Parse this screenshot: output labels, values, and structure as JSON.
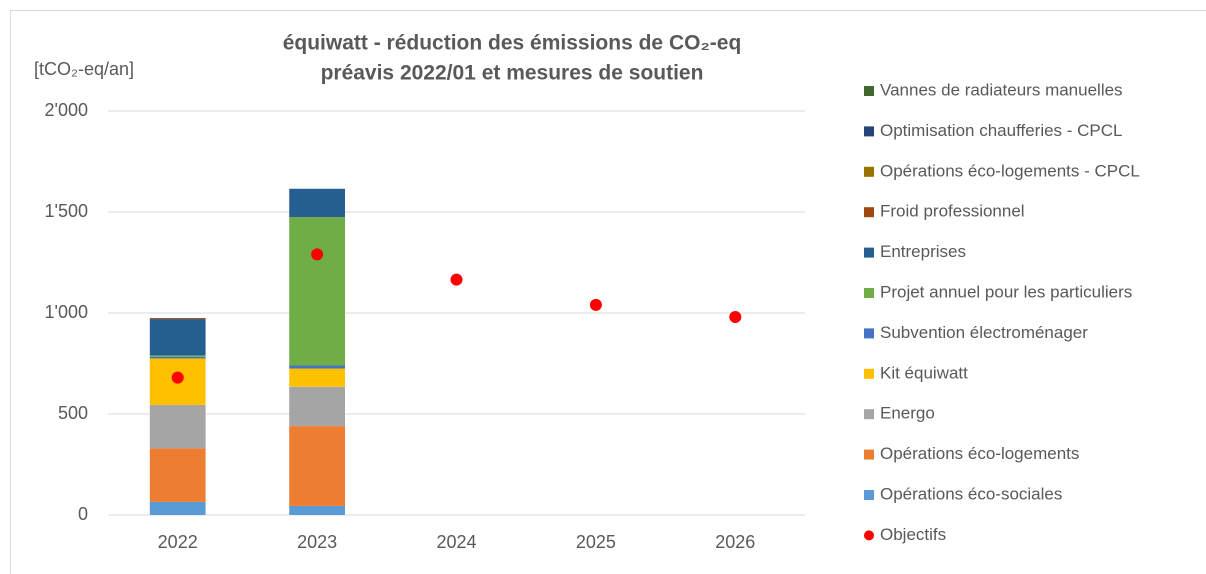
{
  "chart_data": {
    "type": "bar",
    "stacked": true,
    "title": "équiwatt - réduction des émissions de CO₂-eq",
    "subtitle": "préavis 2022/01 et mesures de soutien",
    "y_label": "[tCO₂-eq/an]",
    "categories": [
      "2022",
      "2023",
      "2024",
      "2025",
      "2026"
    ],
    "ylim": [
      0,
      2000
    ],
    "yticks": [
      0,
      500,
      {
        "value": 1000,
        "label": "1'000"
      },
      {
        "value": 1500,
        "label": "1'500"
      },
      {
        "value": 2000,
        "label": "2'000"
      }
    ],
    "grid": true,
    "legend": "right",
    "series": [
      {
        "name": "Opérations éco-sociales",
        "color": "#5b9bd5",
        "values": [
          65,
          45,
          null,
          null,
          null
        ]
      },
      {
        "name": "Opérations éco-logements",
        "color": "#ed7d31",
        "values": [
          265,
          395,
          null,
          null,
          null
        ]
      },
      {
        "name": "Energo",
        "color": "#a5a5a5",
        "values": [
          215,
          195,
          null,
          null,
          null
        ]
      },
      {
        "name": "Kit équiwatt",
        "color": "#ffc000",
        "values": [
          230,
          90,
          null,
          null,
          null
        ]
      },
      {
        "name": "Subvention électroménager",
        "color": "#4472c4",
        "values": [
          8,
          15,
          null,
          null,
          null
        ]
      },
      {
        "name": "Projet annuel pour les particuliers",
        "color": "#70ad47",
        "values": [
          7,
          735,
          null,
          null,
          null
        ]
      },
      {
        "name": "Entreprises",
        "color": "#255e91",
        "values": [
          180,
          140,
          null,
          null,
          null
        ]
      },
      {
        "name": "Froid professionnel",
        "color": "#9e480e",
        "values": [
          5,
          null,
          null,
          null,
          null
        ]
      },
      {
        "name": "Opérations éco-logements - CPCL",
        "color": "#997300",
        "values": [
          null,
          null,
          null,
          null,
          null
        ]
      },
      {
        "name": "Optimisation chaufferies - CPCL",
        "color": "#264478",
        "values": [
          null,
          null,
          null,
          null,
          null
        ]
      },
      {
        "name": "Vannes de radiateurs manuelles",
        "color": "#43682b",
        "values": [
          null,
          null,
          null,
          null,
          null
        ]
      },
      {
        "name": "Objectifs",
        "type": "scatter",
        "color": "#ff0000",
        "values": [
          680,
          1290,
          1165,
          1040,
          980
        ]
      }
    ]
  }
}
